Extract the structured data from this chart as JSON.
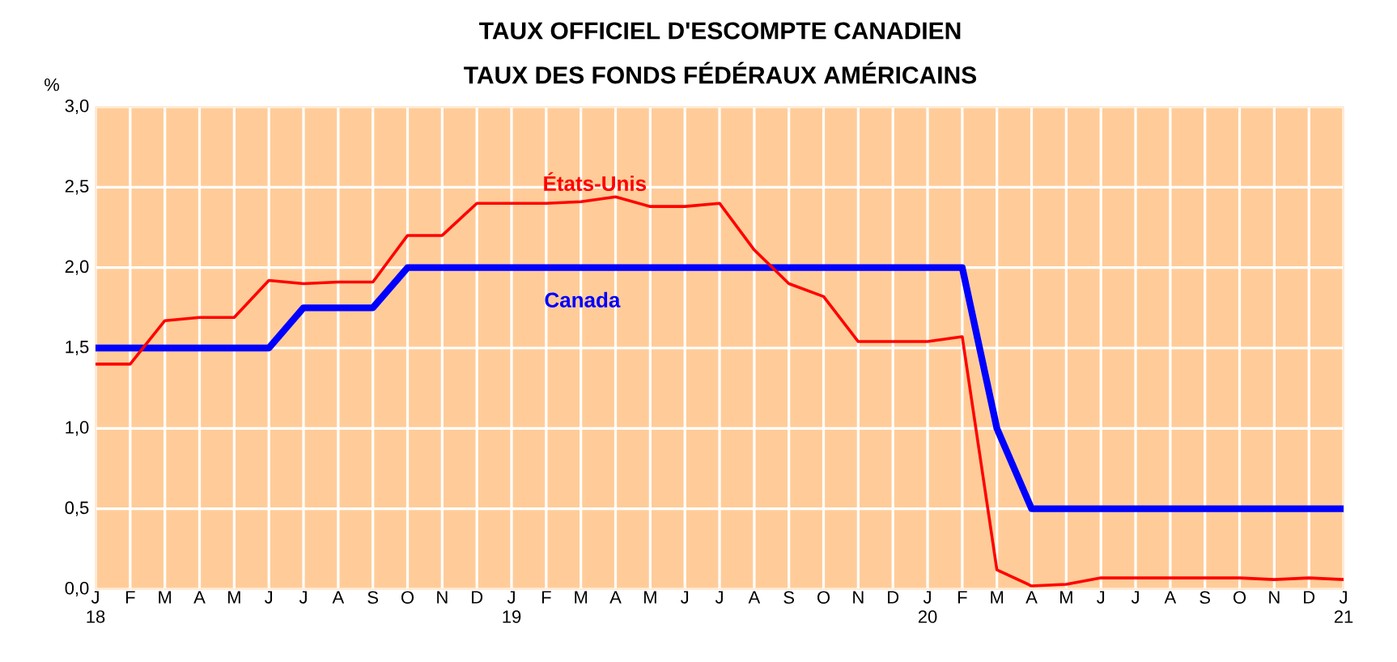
{
  "chart_data": {
    "type": "line",
    "title": "TAUX OFFICIEL D'ESCOMPTE CANADIEN",
    "subtitle": "TAUX DES FONDS FÉDÉRAUX AMÉRICAINS",
    "ylabel": "%",
    "categories": [
      "J 18",
      "F",
      "M",
      "A",
      "M",
      "J",
      "J",
      "A",
      "S",
      "O",
      "N",
      "D",
      "J 19",
      "F",
      "M",
      "A",
      "M",
      "J",
      "J",
      "A",
      "S",
      "O",
      "N",
      "D",
      "J 20",
      "F",
      "M",
      "A",
      "M",
      "J",
      "J",
      "A",
      "S",
      "O",
      "N",
      "D",
      "J 21"
    ],
    "series": [
      {
        "name": "Canada",
        "color": "#0000ff",
        "values": [
          1.5,
          1.5,
          1.5,
          1.5,
          1.5,
          1.5,
          1.75,
          1.75,
          1.75,
          2.0,
          2.0,
          2.0,
          2.0,
          2.0,
          2.0,
          2.0,
          2.0,
          2.0,
          2.0,
          2.0,
          2.0,
          2.0,
          2.0,
          2.0,
          2.0,
          2.0,
          1.0,
          0.5,
          0.5,
          0.5,
          0.5,
          0.5,
          0.5,
          0.5,
          0.5,
          0.5,
          0.5
        ]
      },
      {
        "name": "États-Unis",
        "color": "#ff0000",
        "values": [
          1.4,
          1.4,
          1.67,
          1.69,
          1.69,
          1.92,
          1.9,
          1.91,
          1.91,
          2.2,
          2.2,
          2.4,
          2.4,
          2.4,
          2.41,
          2.44,
          2.38,
          2.38,
          2.4,
          2.11,
          1.9,
          1.82,
          1.54,
          1.54,
          1.54,
          1.57,
          0.12,
          0.02,
          0.03,
          0.07,
          0.07,
          0.07,
          0.07,
          0.07,
          0.06,
          0.07,
          0.06
        ]
      }
    ],
    "ylim": [
      0,
      3
    ],
    "yticks": [
      {
        "value": 0,
        "label": "0,0"
      },
      {
        "value": 0.5,
        "label": "0,5"
      },
      {
        "value": 1,
        "label": "1,0"
      },
      {
        "value": 1.5,
        "label": "1,5"
      },
      {
        "value": 2,
        "label": "2,0"
      },
      {
        "value": 2.5,
        "label": "2,5"
      },
      {
        "value": 3,
        "label": "3,0"
      }
    ],
    "grid": true,
    "marker": "none",
    "line_style": "solid",
    "legend": false
  }
}
